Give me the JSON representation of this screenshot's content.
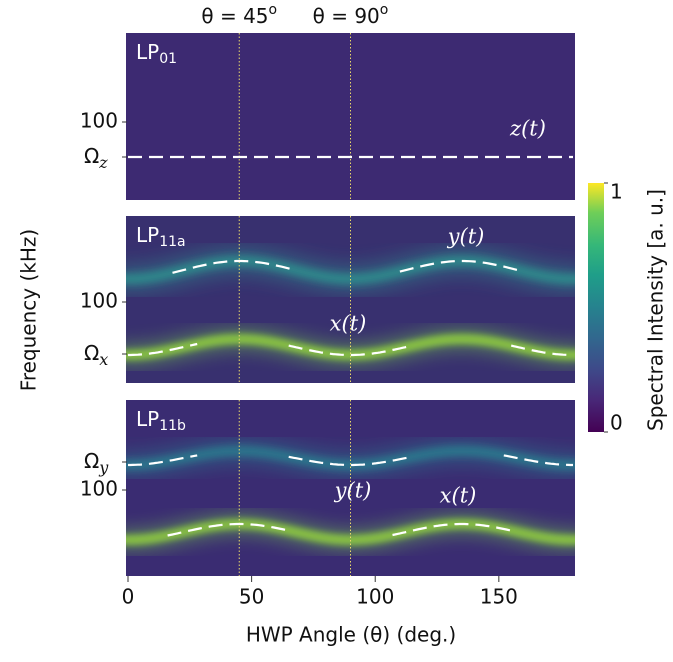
{
  "chart_data": {
    "type": "heatmap",
    "xlabel": "HWP Angle (θ) (deg.)",
    "ylabel": "Frequency (kHz)",
    "xlim": [
      0,
      180
    ],
    "xticks": [
      0,
      50,
      100,
      150
    ],
    "vlines": [
      45,
      90
    ],
    "vline_labels": [
      {
        "text": "θ = 45",
        "sup": "o"
      },
      {
        "text": "θ = 90",
        "sup": "o"
      }
    ],
    "colorbar": {
      "label": "Spectral Intensity [a. u.]",
      "clim": [
        0,
        1
      ],
      "ticks": [
        0,
        1
      ]
    },
    "panels": [
      {
        "mode": "LP",
        "mode_sub": "01",
        "ytick_labels": [
          "100"
        ],
        "omega": {
          "symbol": "Ω",
          "sub": "z"
        },
        "annotations": [
          "z(t)"
        ]
      },
      {
        "mode": "LP",
        "mode_sub": "11a",
        "ytick_labels": [
          "100"
        ],
        "omega": {
          "symbol": "Ω",
          "sub": "x"
        },
        "annotations": [
          "y(t)",
          "x(t)"
        ]
      },
      {
        "mode": "LP",
        "mode_sub": "11b",
        "ytick_labels": [
          "100"
        ],
        "omega": {
          "symbol": "Ω",
          "sub": "y"
        },
        "annotations": [
          "y(t)",
          "x(t)"
        ]
      }
    ]
  }
}
